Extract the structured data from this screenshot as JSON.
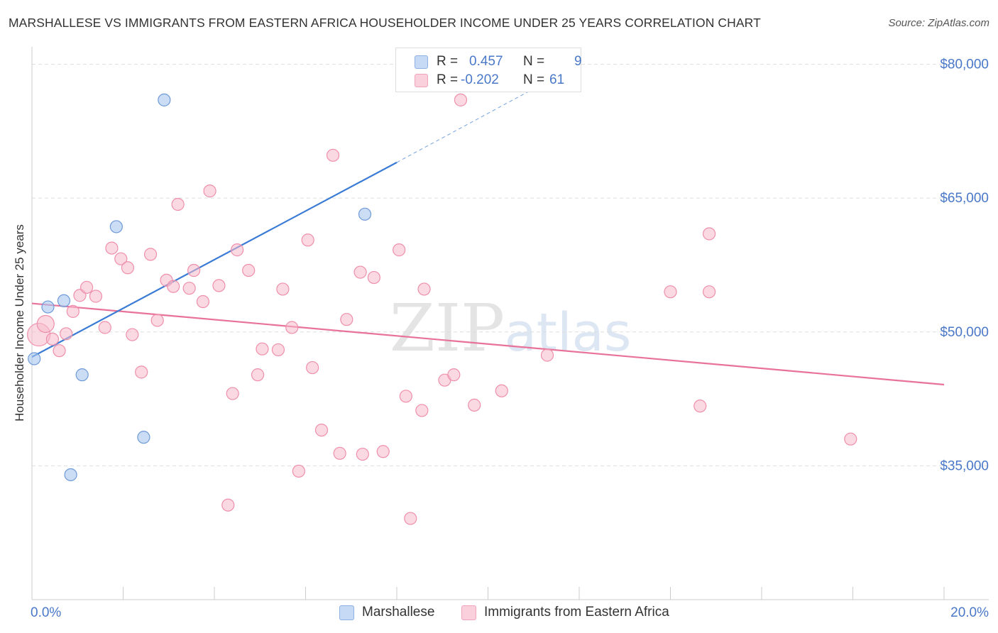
{
  "header": {
    "title": "MARSHALLESE VS IMMIGRANTS FROM EASTERN AFRICA HOUSEHOLDER INCOME UNDER 25 YEARS CORRELATION CHART",
    "source": "Source: ZipAtlas.com"
  },
  "watermark": {
    "zip": "ZIP",
    "atlas": "atlas"
  },
  "legend_top": {
    "rows": [
      {
        "r_label": "R =",
        "r_value": "0.457",
        "n_label": "N =",
        "n_value": "9"
      },
      {
        "r_label": "R =",
        "r_value": "-0.202",
        "n_label": "N =",
        "n_value": "61"
      }
    ]
  },
  "legend_bottom": {
    "items": [
      "Marshallese",
      "Immigrants from Eastern Africa"
    ]
  },
  "colors": {
    "blue_fill": "#a9c6ef",
    "blue_stroke": "#6f9ad8",
    "blue_line": "#3a7bd5",
    "pink_fill": "#f7b9cb",
    "pink_stroke": "#ee8fab",
    "pink_line": "#e8729a",
    "axis_text": "#4a78c8",
    "grid": "#dddddd"
  },
  "chart_data": {
    "type": "scatter",
    "title": "MARSHALLESE VS IMMIGRANTS FROM EASTERN AFRICA HOUSEHOLDER INCOME UNDER 25 YEARS CORRELATION CHART",
    "xlabel": "",
    "ylabel": "Householder Income Under 25 years",
    "xlim": [
      0,
      20
    ],
    "ylim": [
      20000,
      81000
    ],
    "x_tick_labels": [
      "0.0%",
      "20.0%"
    ],
    "y_ticks": [
      35000,
      50000,
      65000,
      80000
    ],
    "y_tick_labels": [
      "$35,000",
      "$50,000",
      "$65,000",
      "$80,000"
    ],
    "grid": true,
    "series": [
      {
        "name": "Marshallese",
        "points": [
          [
            0.05,
            47000
          ],
          [
            0.35,
            52800
          ],
          [
            0.7,
            53500
          ],
          [
            1.1,
            45200
          ],
          [
            0.85,
            34000
          ],
          [
            1.85,
            61800
          ],
          [
            2.45,
            38200
          ],
          [
            2.9,
            76000
          ],
          [
            7.3,
            63200
          ]
        ],
        "trend": {
          "x": [
            0,
            8.0
          ],
          "y": [
            47200,
            69000
          ]
        },
        "trend_extension": {
          "x": [
            8.0,
            12.0
          ],
          "y": [
            69000,
            80000
          ]
        }
      },
      {
        "name": "Immigrants from Eastern Africa",
        "points": [
          [
            0.15,
            49700
          ],
          [
            0.3,
            50900
          ],
          [
            0.45,
            49200
          ],
          [
            0.6,
            47900
          ],
          [
            0.75,
            49800
          ],
          [
            0.9,
            52300
          ],
          [
            1.05,
            54100
          ],
          [
            1.2,
            55000
          ],
          [
            1.4,
            54000
          ],
          [
            1.6,
            50500
          ],
          [
            1.75,
            59400
          ],
          [
            1.95,
            58200
          ],
          [
            2.1,
            57200
          ],
          [
            2.2,
            49700
          ],
          [
            2.4,
            45500
          ],
          [
            2.6,
            58700
          ],
          [
            2.75,
            51300
          ],
          [
            2.95,
            55800
          ],
          [
            3.1,
            55100
          ],
          [
            3.2,
            64300
          ],
          [
            3.45,
            54900
          ],
          [
            3.55,
            56900
          ],
          [
            3.75,
            53400
          ],
          [
            3.9,
            65800
          ],
          [
            4.1,
            55200
          ],
          [
            4.3,
            30600
          ],
          [
            4.4,
            43100
          ],
          [
            4.5,
            59200
          ],
          [
            4.75,
            56900
          ],
          [
            4.95,
            45200
          ],
          [
            5.05,
            48100
          ],
          [
            5.4,
            48000
          ],
          [
            5.5,
            54800
          ],
          [
            5.7,
            50500
          ],
          [
            5.85,
            34400
          ],
          [
            6.05,
            60300
          ],
          [
            6.15,
            46000
          ],
          [
            6.35,
            39000
          ],
          [
            6.6,
            69800
          ],
          [
            6.9,
            51400
          ],
          [
            6.75,
            36400
          ],
          [
            7.2,
            56700
          ],
          [
            7.25,
            36300
          ],
          [
            7.5,
            56100
          ],
          [
            7.7,
            36600
          ],
          [
            8.05,
            59200
          ],
          [
            8.2,
            42800
          ],
          [
            8.3,
            29100
          ],
          [
            8.55,
            41200
          ],
          [
            8.6,
            54800
          ],
          [
            9.05,
            44600
          ],
          [
            9.25,
            45200
          ],
          [
            9.7,
            41800
          ],
          [
            10.3,
            43400
          ],
          [
            11.3,
            47400
          ],
          [
            14.0,
            54500
          ],
          [
            14.65,
            41700
          ],
          [
            14.85,
            61000
          ],
          [
            14.85,
            54500
          ],
          [
            17.95,
            38000
          ],
          [
            9.4,
            76000
          ]
        ],
        "trend": {
          "x": [
            0,
            20
          ],
          "y": [
            53200,
            44100
          ]
        }
      }
    ]
  }
}
